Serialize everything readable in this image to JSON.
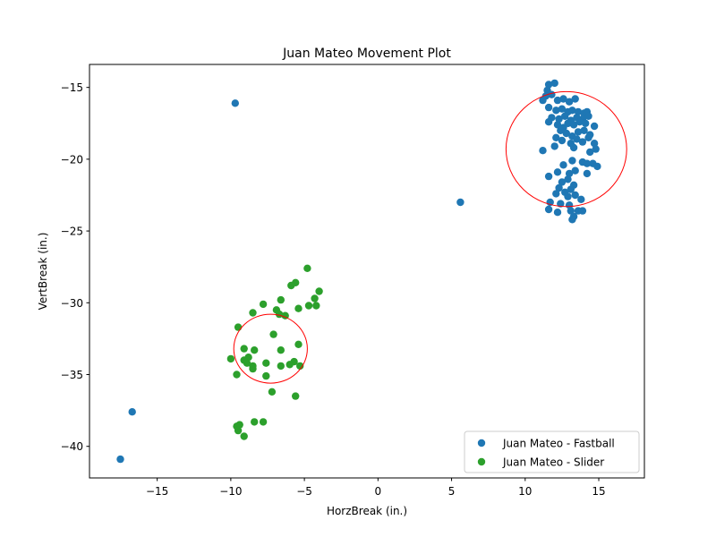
{
  "chart_data": {
    "type": "scatter",
    "title": "Juan Mateo Movement Plot",
    "xlabel": "HorzBreak (in.)",
    "ylabel": "VertBreak (in.)",
    "xlim": [
      -19.6,
      18.1
    ],
    "ylim": [
      -42.2,
      -13.4
    ],
    "xticks": [
      -15,
      -10,
      -5,
      0,
      5,
      10,
      15
    ],
    "yticks": [
      -40,
      -35,
      -30,
      -25,
      -20,
      -15
    ],
    "xtick_labels": [
      "−15",
      "−10",
      "−5",
      "0",
      "5",
      "10",
      "15"
    ],
    "ytick_labels": [
      "−40",
      "−35",
      "−30",
      "−25",
      "−20",
      "−15"
    ],
    "grid": false,
    "legend_position": "lower-right",
    "series": [
      {
        "name": "Juan Mateo - Fastball",
        "color": "#1f77b4",
        "points": [
          [
            -9.7,
            -16.1
          ],
          [
            -16.7,
            -37.6
          ],
          [
            -17.5,
            -40.9
          ],
          [
            5.6,
            -23.0
          ],
          [
            11.6,
            -14.8
          ],
          [
            12.0,
            -14.7
          ],
          [
            11.5,
            -15.2
          ],
          [
            11.8,
            -15.5
          ],
          [
            11.4,
            -15.6
          ],
          [
            11.2,
            -15.9
          ],
          [
            12.2,
            -15.9
          ],
          [
            12.6,
            -15.8
          ],
          [
            13.0,
            -16.0
          ],
          [
            13.4,
            -15.8
          ],
          [
            11.6,
            -16.4
          ],
          [
            12.1,
            -16.6
          ],
          [
            12.5,
            -16.5
          ],
          [
            12.9,
            -16.7
          ],
          [
            13.2,
            -16.6
          ],
          [
            13.6,
            -16.7
          ],
          [
            14.0,
            -16.8
          ],
          [
            14.2,
            -16.7
          ],
          [
            11.8,
            -17.1
          ],
          [
            12.3,
            -17.2
          ],
          [
            12.7,
            -17.0
          ],
          [
            13.1,
            -17.3
          ],
          [
            13.5,
            -17.1
          ],
          [
            13.9,
            -17.2
          ],
          [
            14.3,
            -17.0
          ],
          [
            11.6,
            -17.4
          ],
          [
            12.2,
            -17.6
          ],
          [
            12.6,
            -17.8
          ],
          [
            12.9,
            -17.5
          ],
          [
            13.3,
            -17.6
          ],
          [
            13.7,
            -17.4
          ],
          [
            14.1,
            -17.5
          ],
          [
            14.7,
            -17.7
          ],
          [
            12.4,
            -18.0
          ],
          [
            12.8,
            -18.2
          ],
          [
            13.2,
            -18.4
          ],
          [
            13.6,
            -18.1
          ],
          [
            14.0,
            -18.0
          ],
          [
            14.4,
            -18.3
          ],
          [
            12.1,
            -18.5
          ],
          [
            12.5,
            -18.7
          ],
          [
            13.1,
            -18.9
          ],
          [
            13.5,
            -18.6
          ],
          [
            13.9,
            -18.8
          ],
          [
            14.3,
            -18.5
          ],
          [
            14.7,
            -18.9
          ],
          [
            12.0,
            -19.1
          ],
          [
            13.3,
            -19.2
          ],
          [
            14.4,
            -19.5
          ],
          [
            14.8,
            -19.3
          ],
          [
            11.2,
            -19.4
          ],
          [
            13.2,
            -20.1
          ],
          [
            12.6,
            -20.4
          ],
          [
            13.9,
            -20.2
          ],
          [
            14.2,
            -20.3
          ],
          [
            14.6,
            -20.3
          ],
          [
            14.9,
            -20.5
          ],
          [
            11.6,
            -21.2
          ],
          [
            12.2,
            -20.9
          ],
          [
            13.0,
            -21.0
          ],
          [
            13.4,
            -20.8
          ],
          [
            14.2,
            -21.0
          ],
          [
            12.5,
            -21.6
          ],
          [
            12.9,
            -21.4
          ],
          [
            13.3,
            -21.8
          ],
          [
            12.3,
            -22.0
          ],
          [
            12.7,
            -22.3
          ],
          [
            13.1,
            -22.1
          ],
          [
            12.1,
            -22.4
          ],
          [
            12.9,
            -22.6
          ],
          [
            13.4,
            -22.5
          ],
          [
            11.7,
            -23.0
          ],
          [
            12.4,
            -23.1
          ],
          [
            13.0,
            -23.2
          ],
          [
            13.8,
            -22.8
          ],
          [
            11.6,
            -23.5
          ],
          [
            12.2,
            -23.7
          ],
          [
            13.1,
            -23.6
          ],
          [
            13.6,
            -23.6
          ],
          [
            13.9,
            -23.6
          ],
          [
            13.3,
            -24.0
          ],
          [
            13.2,
            -24.2
          ]
        ]
      },
      {
        "name": "Juan Mateo - Slider",
        "color": "#2ca02c",
        "points": [
          [
            -4.8,
            -27.6
          ],
          [
            -5.6,
            -28.6
          ],
          [
            -5.9,
            -28.8
          ],
          [
            -4.0,
            -29.2
          ],
          [
            -4.3,
            -29.7
          ],
          [
            -6.6,
            -29.8
          ],
          [
            -7.8,
            -30.1
          ],
          [
            -4.7,
            -30.2
          ],
          [
            -4.2,
            -30.2
          ],
          [
            -5.4,
            -30.4
          ],
          [
            -6.9,
            -30.5
          ],
          [
            -8.5,
            -30.7
          ],
          [
            -6.7,
            -30.8
          ],
          [
            -6.3,
            -30.9
          ],
          [
            -9.5,
            -31.7
          ],
          [
            -7.1,
            -32.2
          ],
          [
            -5.4,
            -32.9
          ],
          [
            -9.1,
            -33.2
          ],
          [
            -8.4,
            -33.3
          ],
          [
            -6.6,
            -33.3
          ],
          [
            -10.0,
            -33.9
          ],
          [
            -8.8,
            -33.8
          ],
          [
            -9.1,
            -34.0
          ],
          [
            -8.9,
            -34.2
          ],
          [
            -7.6,
            -34.2
          ],
          [
            -5.7,
            -34.1
          ],
          [
            -8.5,
            -34.4
          ],
          [
            -6.6,
            -34.4
          ],
          [
            -6.0,
            -34.3
          ],
          [
            -5.3,
            -34.4
          ],
          [
            -8.5,
            -34.6
          ],
          [
            -9.6,
            -35.0
          ],
          [
            -7.6,
            -35.1
          ],
          [
            -7.2,
            -36.2
          ],
          [
            -5.6,
            -36.5
          ],
          [
            -8.4,
            -38.3
          ],
          [
            -7.8,
            -38.3
          ],
          [
            -9.4,
            -38.5
          ],
          [
            -9.6,
            -38.6
          ],
          [
            -9.5,
            -38.9
          ],
          [
            -9.1,
            -39.3
          ]
        ]
      }
    ],
    "circles": [
      {
        "cx": 12.8,
        "cy": -19.3,
        "rx": 4.1,
        "ry": 4.0,
        "color": "#ff0000"
      },
      {
        "cx": -7.3,
        "cy": -33.2,
        "rx": 2.5,
        "ry": 2.4,
        "color": "#ff0000"
      }
    ]
  }
}
